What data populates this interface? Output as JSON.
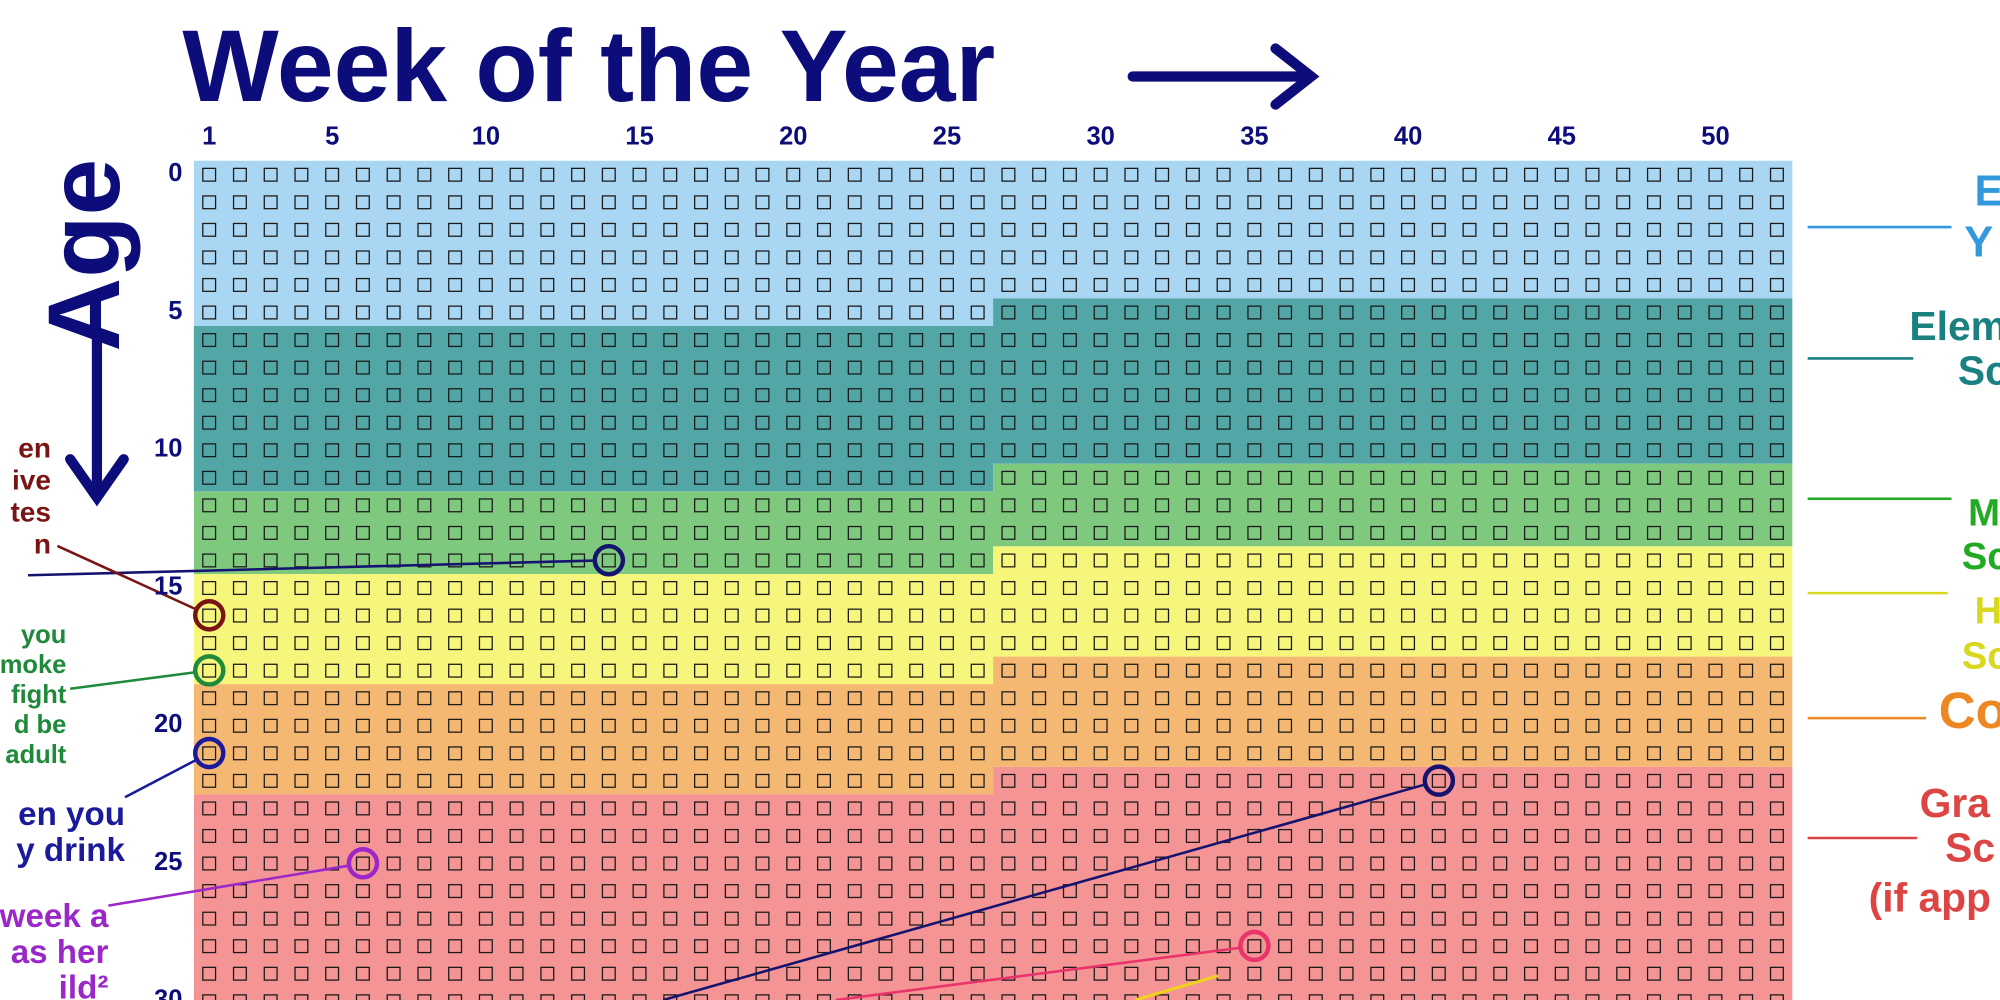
{
  "title": "Week of the Year",
  "y_label": "Age",
  "week_ticks": [
    1,
    5,
    10,
    15,
    20,
    25,
    30,
    35,
    40,
    45,
    50
  ],
  "age_ticks": [
    0,
    5,
    10,
    15,
    20,
    25,
    30
  ],
  "stages": [
    {
      "lines": [
        "E",
        "Y"
      ],
      "start": 0,
      "color": "#a9d6f2",
      "label_color": "#3399dd"
    },
    {
      "lines": [
        "Elem",
        "Sc"
      ],
      "start": 5.5,
      "color": "#52a6a6",
      "label_color": "#1a8080"
    },
    {
      "lines": [
        "M",
        "Sc"
      ],
      "start": 11.5,
      "color": "#7fc97f",
      "label_color": "#22aa22"
    },
    {
      "lines": [
        "H",
        "Sc"
      ],
      "start": 14.5,
      "color": "#f6f67c",
      "label_color": "#d8d820"
    },
    {
      "lines": [
        "Co"
      ],
      "start": 18.5,
      "color": "#f5b873",
      "label_color": "#ee8822"
    },
    {
      "lines": [
        "Gra",
        "Sc",
        "(if app"
      ],
      "start": 22.5,
      "color": "#f59494",
      "label_color": "#dd4444"
    }
  ],
  "annotations": [
    {
      "week": 14,
      "age": 14,
      "color": "#141470"
    },
    {
      "week": 1,
      "age": 16,
      "color": "#7a1414",
      "lines": [
        "en",
        "ive",
        "tes",
        "n"
      ]
    },
    {
      "week": 1,
      "age": 18,
      "color": "#1e8a3a",
      "lines": [
        "you",
        "moke",
        "fight",
        "d be",
        "adult"
      ]
    },
    {
      "week": 1,
      "age": 21,
      "color": "#1a1a9a",
      "lines": [
        "en you",
        "y drink"
      ]
    },
    {
      "week": 41,
      "age": 22,
      "color": "#141470"
    },
    {
      "week": 6,
      "age": 25,
      "color": "#9a28c8",
      "lines": [
        "week a",
        "as her",
        "ild²"
      ]
    },
    {
      "week": 35,
      "age": 28,
      "color": "#e8346a"
    }
  ]
}
